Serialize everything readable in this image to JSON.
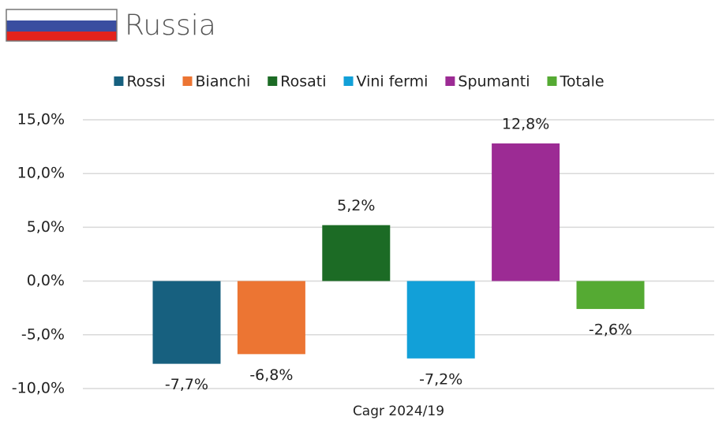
{
  "chart_data": {
    "type": "bar",
    "title": "Russia",
    "categories": [
      "Cagr 2024/19"
    ],
    "series": [
      {
        "name": "Rossi",
        "color": "#17607f",
        "values": [
          -7.7
        ],
        "value_labels": [
          "-7,7%"
        ]
      },
      {
        "name": "Bianchi",
        "color": "#ec7533",
        "values": [
          -6.8
        ],
        "value_labels": [
          "-6,8%"
        ]
      },
      {
        "name": "Rosati",
        "color": "#1c6b25",
        "values": [
          5.2
        ],
        "value_labels": [
          "5,2%"
        ]
      },
      {
        "name": "Vini fermi",
        "color": "#12a0d8",
        "values": [
          -7.2
        ],
        "value_labels": [
          "-7,2%"
        ]
      },
      {
        "name": "Spumanti",
        "color": "#9c2b94",
        "values": [
          12.8
        ],
        "value_labels": [
          "12,8%"
        ]
      },
      {
        "name": "Totale",
        "color": "#55aa33",
        "values": [
          -2.6
        ],
        "value_labels": [
          "-2,6%"
        ]
      }
    ],
    "ylim": [
      -10,
      15
    ],
    "yticks": [
      {
        "value": -10,
        "label": "-10,0%"
      },
      {
        "value": -5,
        "label": "-5,0%"
      },
      {
        "value": 0,
        "label": "0,0%"
      },
      {
        "value": 5,
        "label": "5,0%"
      },
      {
        "value": 10,
        "label": "10,0%"
      },
      {
        "value": 15,
        "label": "15,0%"
      }
    ],
    "grid": true,
    "legend": "top"
  }
}
